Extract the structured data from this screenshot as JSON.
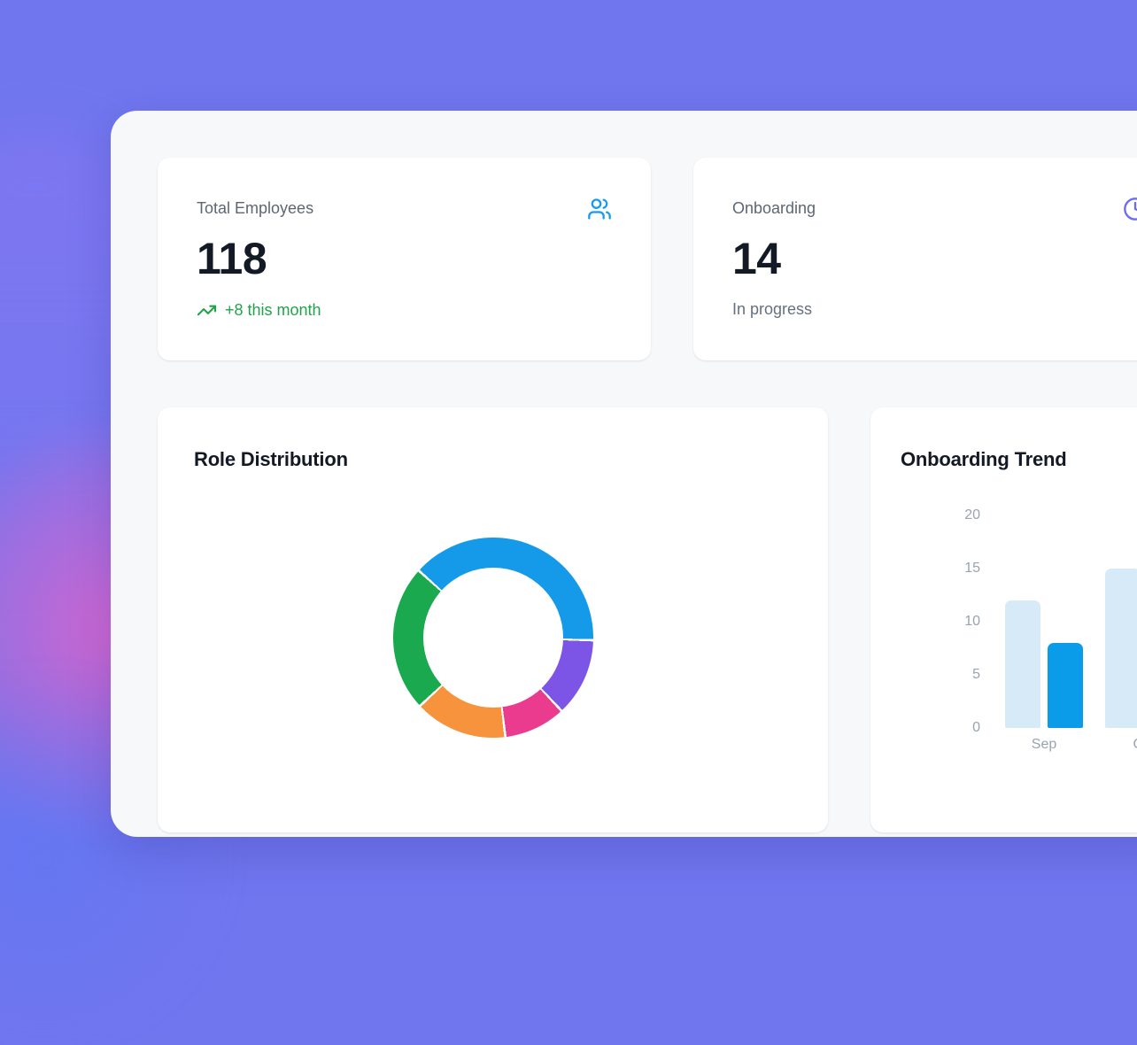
{
  "background": {
    "base_color": "#7076ee",
    "pink_glow_color": "#e762c8",
    "panel_color": "#f7f8fa"
  },
  "stats": [
    {
      "label": "Total Employees",
      "value": "118",
      "delta": "+8 this month",
      "delta_color": "#21a24b",
      "icon": "users-icon",
      "icon_color": "#189bee"
    },
    {
      "label": "Onboarding",
      "value": "14",
      "sub": "In progress",
      "icon": "clock-icon",
      "icon_color": "#6b6cf3"
    }
  ],
  "chart_data": [
    {
      "type": "doughnut",
      "title": "Role Distribution",
      "legend": "none",
      "start_angle_deg": 312,
      "separator_gap_deg": 1.4,
      "inner_radius_ratio": 0.7,
      "segments": [
        {
          "name": "segment-blue",
          "color": "#149ae9",
          "degrees": 139.5,
          "percent": 38.8
        },
        {
          "name": "segment-purple",
          "color": "#7d55e6",
          "degrees": 45.5,
          "percent": 12.6
        },
        {
          "name": "segment-pink",
          "color": "#ea3b8f",
          "degrees": 36.0,
          "percent": 10.0
        },
        {
          "name": "segment-orange",
          "color": "#f6933c",
          "degrees": 54.0,
          "percent": 15.0
        },
        {
          "name": "segment-green",
          "color": "#1ba94f",
          "degrees": 85.0,
          "percent": 23.6
        }
      ]
    },
    {
      "type": "bar",
      "title": "Onboarding Trend",
      "legend": "none",
      "grid": false,
      "categories": [
        "Sep",
        "Oct"
      ],
      "series": [
        {
          "name": "light-blue-series",
          "color": "#d6eaf8",
          "values": [
            12,
            15
          ]
        },
        {
          "name": "dark-blue-series",
          "color": "#0b9ce9",
          "values": [
            8,
            null
          ]
        }
      ],
      "ylim": [
        0,
        20
      ],
      "yticks": [
        0,
        5,
        10,
        15,
        20
      ]
    }
  ]
}
